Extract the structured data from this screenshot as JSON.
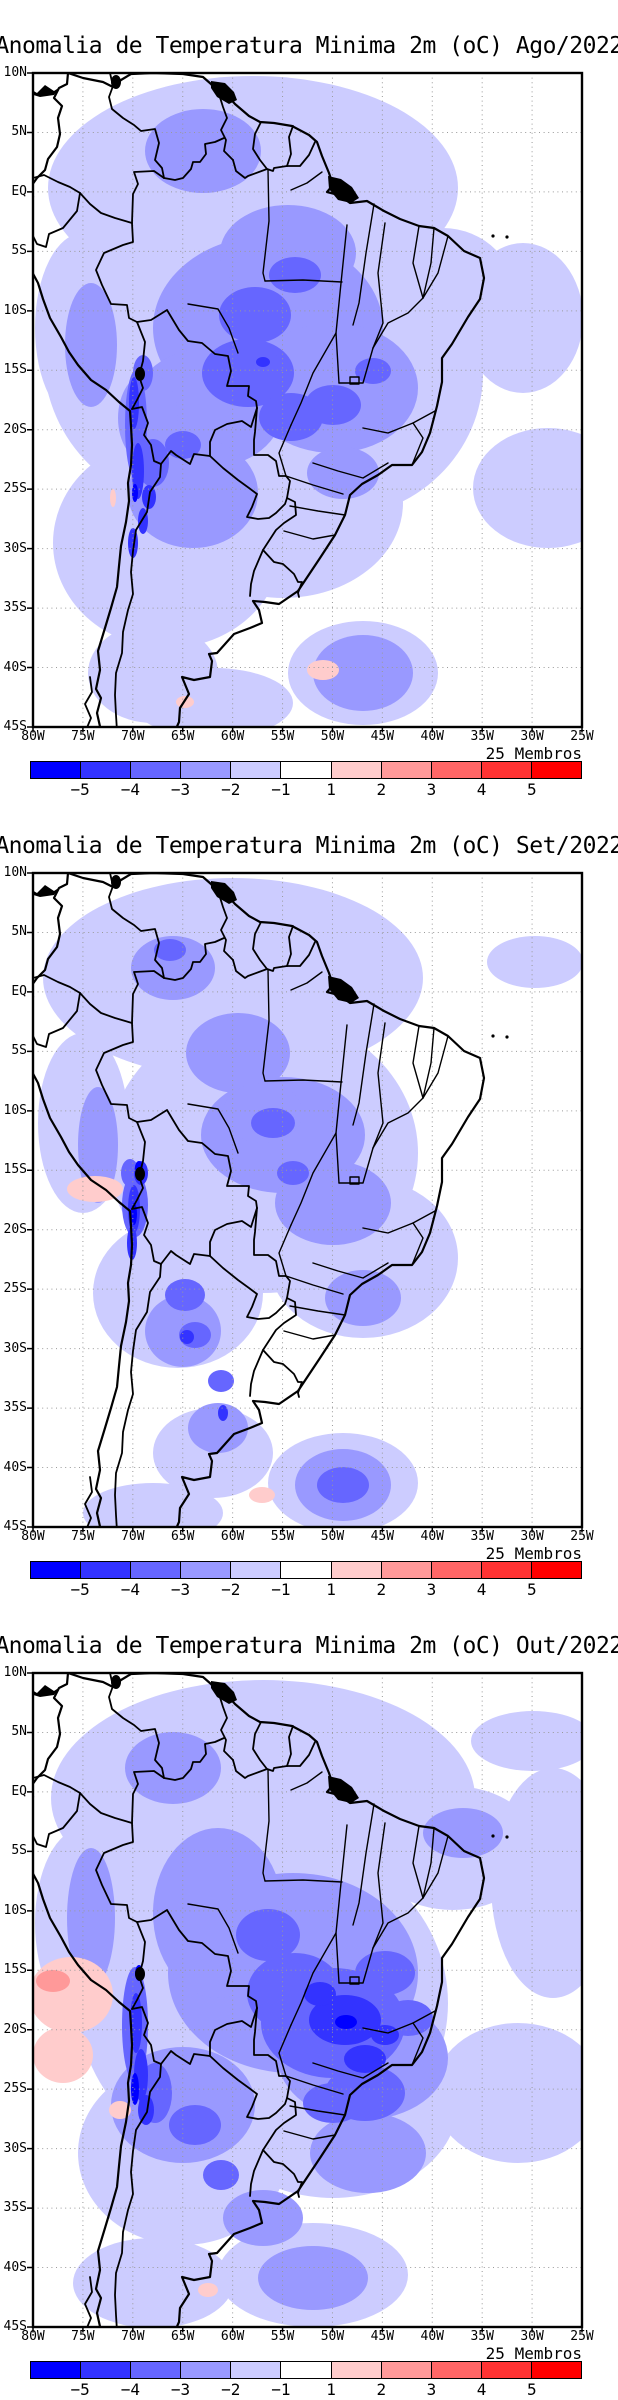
{
  "panels": [
    {
      "id": "ago2022",
      "title": "Anomalia de Temperatura Minima 2m (oC) Ago/2022"
    },
    {
      "id": "set2022",
      "title": "Anomalia de Temperatura Minima 2m (oC) Set/2022"
    },
    {
      "id": "out2022",
      "title": "Anomalia de Temperatura Minima 2m (oC) Out/2022"
    }
  ],
  "map_axes": {
    "lat_labels": [
      "10N",
      "5N",
      "EQ",
      "5S",
      "10S",
      "15S",
      "20S",
      "25S",
      "30S",
      "35S",
      "40S",
      "45S"
    ],
    "lon_labels": [
      "80W",
      "75W",
      "70W",
      "65W",
      "60W",
      "55W",
      "50W",
      "45W",
      "40W",
      "35W",
      "30W",
      "25W"
    ]
  },
  "colorbar": {
    "members_label": "25 Membros",
    "labels": [
      "−5",
      "−4",
      "−3",
      "−2",
      "−1",
      "1",
      "2",
      "3",
      "4",
      "5"
    ],
    "colors": [
      "#0000ff",
      "#3333ff",
      "#6666ff",
      "#9999ff",
      "#ccccff",
      "#ffffff",
      "#ffcccc",
      "#ff9999",
      "#ff6666",
      "#ff3333",
      "#ff0000"
    ]
  }
}
